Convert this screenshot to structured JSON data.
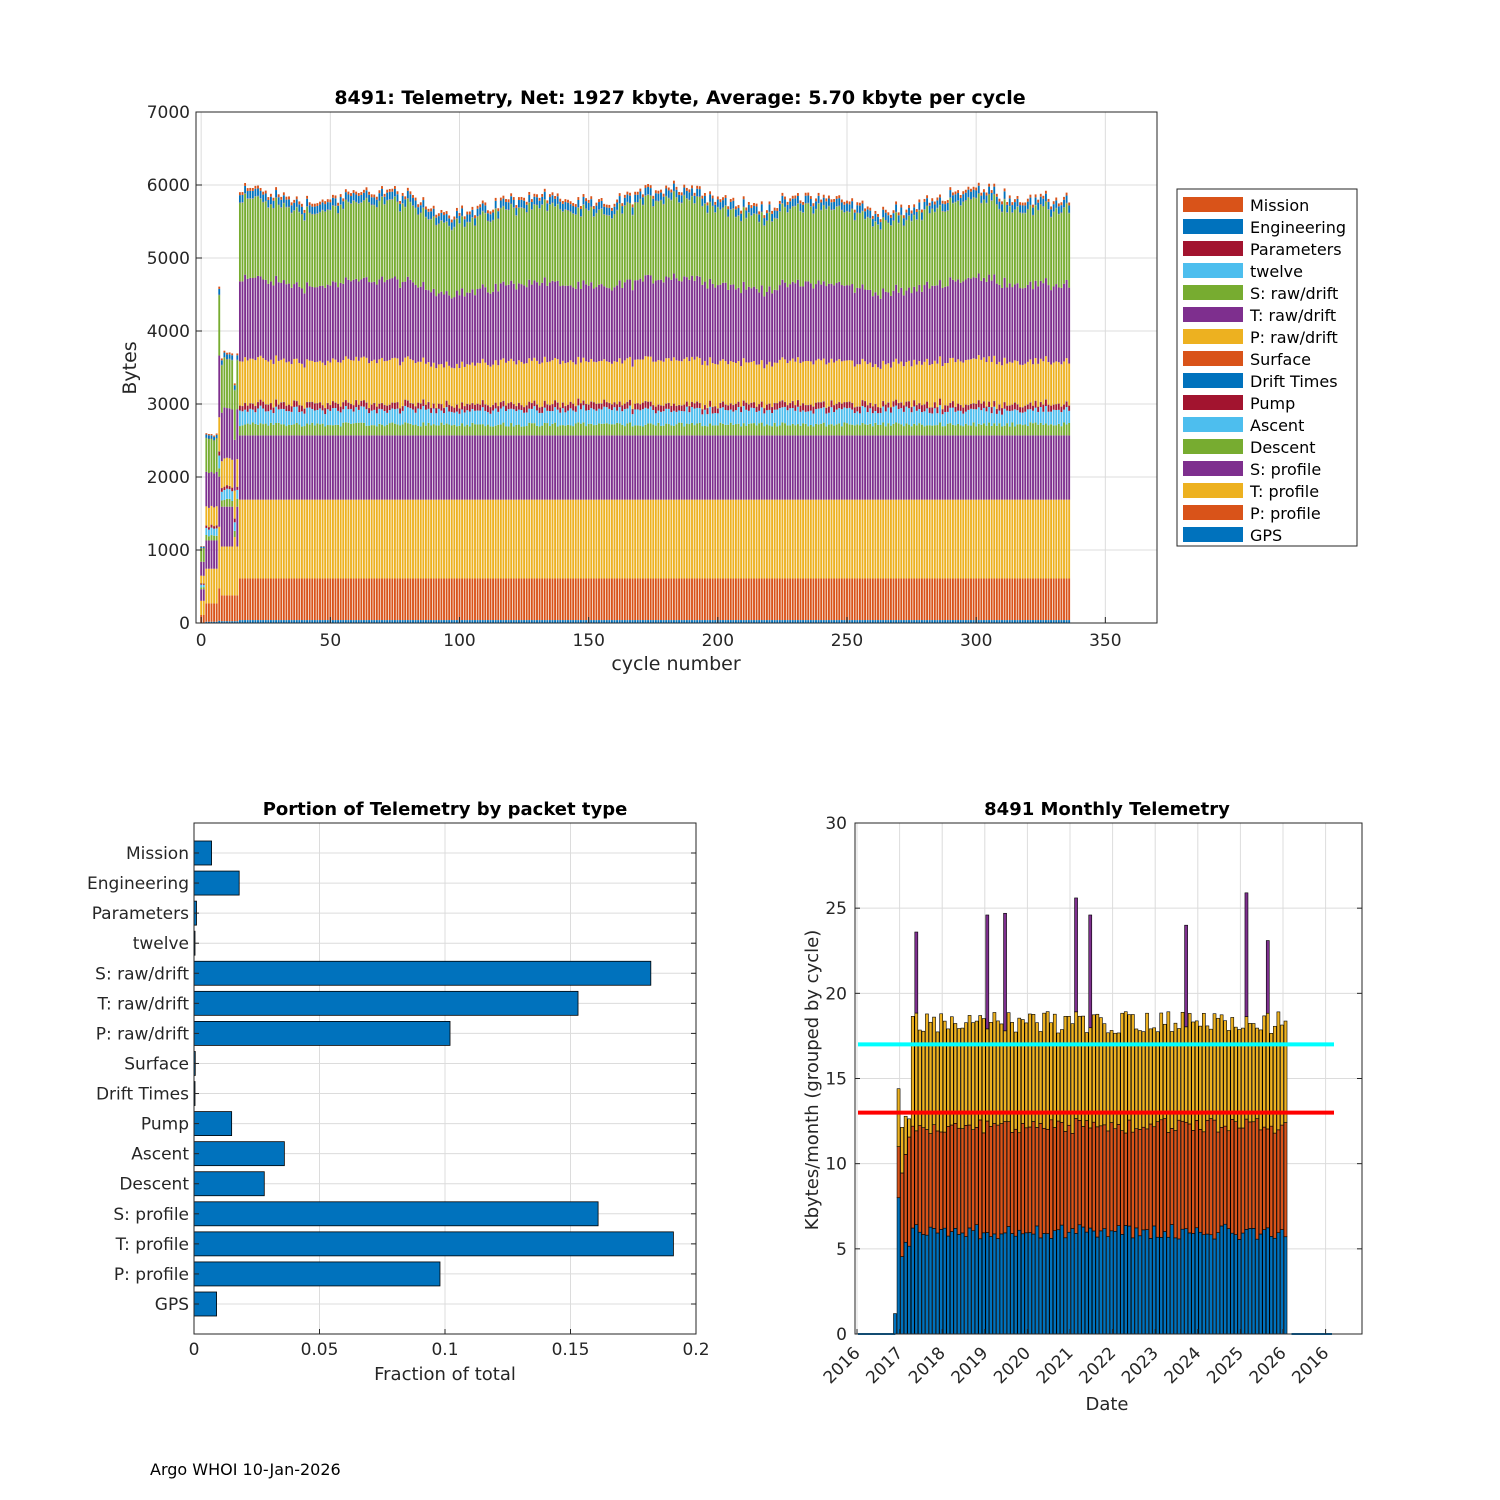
{
  "footer": "Argo WHOI 10-Jan-2026",
  "colors": {
    "mission": "#D95319",
    "engineering": "#0072BD",
    "parameters": "#A2142F",
    "twelve": "#4DBEEE",
    "s_raw": "#77AC30",
    "t_raw": "#7E2F8E",
    "p_raw": "#EDB120",
    "surface": "#D95319",
    "drift_times": "#0072BD",
    "pump": "#A2142F",
    "ascent": "#4DBEEE",
    "descent": "#77AC30",
    "s_profile": "#7E2F8E",
    "t_profile": "#EDB120",
    "p_profile": "#D95319",
    "gps": "#0072BD",
    "cyan_line": "#00FFFF",
    "red_line": "#FF0000"
  },
  "chart_data": [
    {
      "id": "telemetry_per_cycle",
      "type": "bar",
      "stacked": true,
      "title": "8491: Telemetry, Net:   1927 kbyte,  Average: 5.70 kbyte per cycle",
      "xlabel": "cycle number",
      "ylabel": "Bytes",
      "xlim": [
        -2,
        370
      ],
      "ylim": [
        0,
        7000
      ],
      "xticks": [
        0,
        50,
        100,
        150,
        200,
        250,
        300,
        350
      ],
      "yticks": [
        0,
        1000,
        2000,
        3000,
        4000,
        5000,
        6000,
        7000
      ],
      "grid": true,
      "n_cycles": 337,
      "legend_position": "outside-right",
      "legend": [
        "Mission",
        "Engineering",
        "Parameters",
        "twelve",
        "S: raw/drift",
        "T: raw/drift",
        "P: raw/drift",
        "Surface",
        "Drift Times",
        "Pump",
        "Ascent",
        "Descent",
        "S: profile",
        "T: profile",
        "P: profile",
        "GPS"
      ],
      "typical_cycle_stack": [
        {
          "name": "GPS",
          "value": 40
        },
        {
          "name": "P: profile",
          "value": 570
        },
        {
          "name": "T: profile",
          "value": 1080
        },
        {
          "name": "S: profile",
          "value": 880
        },
        {
          "name": "Descent",
          "value": 150
        },
        {
          "name": "Ascent",
          "value": 200
        },
        {
          "name": "Pump",
          "value": 80
        },
        {
          "name": "Drift Times",
          "value": 2
        },
        {
          "name": "Surface",
          "value": 2
        },
        {
          "name": "P: raw/drift",
          "value": 580
        },
        {
          "name": "T: raw/drift",
          "value": 1050
        },
        {
          "name": "S: raw/drift",
          "value": 1030
        },
        {
          "name": "twelve",
          "value": 2
        },
        {
          "name": "Parameters",
          "value": 5
        },
        {
          "name": "Engineering",
          "value": 100
        },
        {
          "name": "Mission",
          "value": 40
        }
      ],
      "top_totals_by_cycle_range": [
        {
          "cycles": "0-1",
          "total": 1100
        },
        {
          "cycles": "2-6",
          "total": 2600
        },
        {
          "cycles": "7",
          "total": 4600
        },
        {
          "cycles": "8-14",
          "total": 3650
        },
        {
          "cycles": "15-336",
          "total_range": [
            5200,
            6380
          ],
          "typical": 5900
        }
      ]
    },
    {
      "id": "portion_by_packet_type",
      "type": "bar",
      "orientation": "horizontal",
      "title": "Portion of Telemetry by packet type",
      "xlabel": "Fraction of total",
      "ylabel": "",
      "xlim": [
        0,
        0.2
      ],
      "xticks": [
        0,
        0.05,
        0.1,
        0.15,
        0.2
      ],
      "xtick_labels": [
        "0",
        "0.05",
        "0.1",
        "0.15",
        "0.2"
      ],
      "grid": true,
      "categories": [
        "Mission",
        "Engineering",
        "Parameters",
        "twelve",
        "S: raw/drift",
        "T: raw/drift",
        "P: raw/drift",
        "Surface",
        "Drift Times",
        "Pump",
        "Ascent",
        "Descent",
        "S: profile",
        "T: profile",
        "P: profile",
        "GPS"
      ],
      "values": [
        0.007,
        0.018,
        0.001,
        0.0003,
        0.182,
        0.153,
        0.102,
        0.0005,
        0.0003,
        0.015,
        0.036,
        0.028,
        0.161,
        0.191,
        0.098,
        0.009
      ]
    },
    {
      "id": "monthly_telemetry",
      "type": "bar",
      "stacked": true,
      "title": "8491 Monthly Telemetry",
      "xlabel": "Date",
      "ylabel": "Kbytes/month (grouped by cycle)",
      "ylim": [
        0,
        30
      ],
      "yticks": [
        0,
        5,
        10,
        15,
        20,
        25,
        30
      ],
      "xtick_labels": [
        "2016",
        "2017",
        "2018",
        "2019",
        "2020",
        "2021",
        "2022",
        "2023",
        "2024",
        "2025",
        "2026",
        "2016"
      ],
      "grid": true,
      "reference_lines": [
        {
          "value": 17,
          "color": "cyan"
        },
        {
          "value": 13,
          "color": "red"
        }
      ],
      "spikes": [
        {
          "month": "2017-05",
          "total": 23.6
        },
        {
          "month": "2019-01",
          "total": 24.6
        },
        {
          "month": "2019-06",
          "total": 24.7
        },
        {
          "month": "2021-02",
          "total": 25.6
        },
        {
          "month": "2021-06",
          "total": 24.6
        },
        {
          "month": "2023-09",
          "total": 24.0
        },
        {
          "month": "2025-02",
          "total": 25.9
        },
        {
          "month": "2025-08",
          "total": 23.1
        }
      ],
      "typical_month": {
        "blue": 6.0,
        "orange": 12.2,
        "yellow": 18.3
      }
    }
  ]
}
